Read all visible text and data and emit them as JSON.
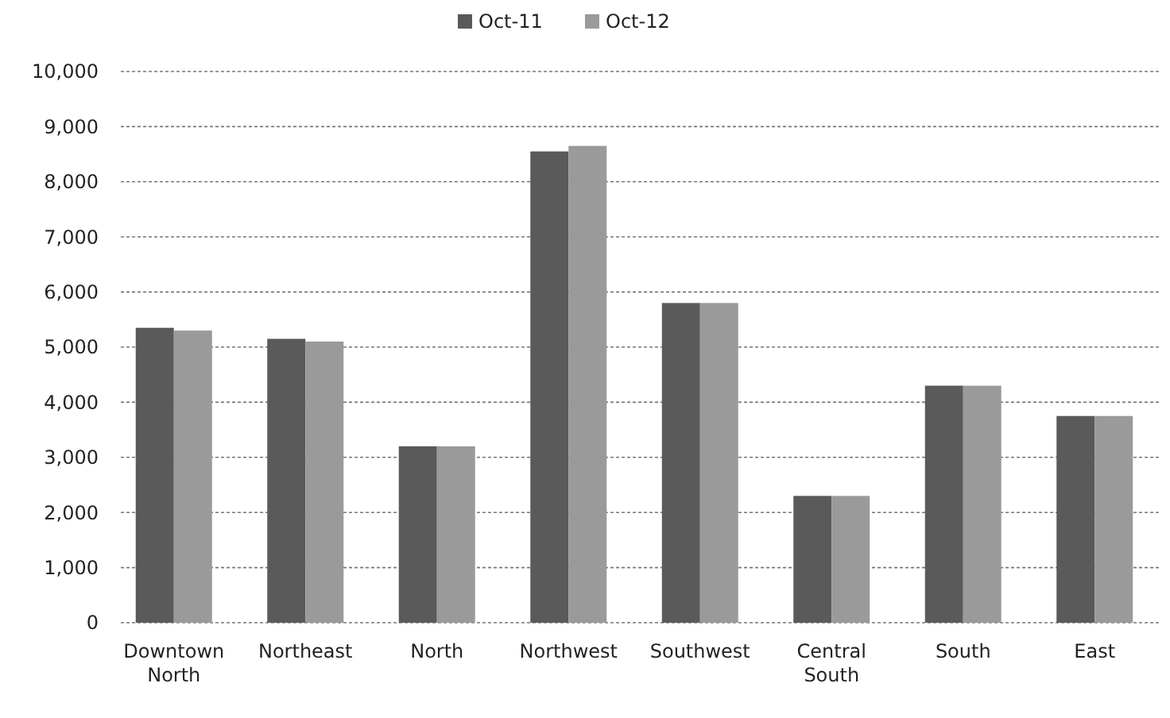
{
  "chart_data": {
    "type": "bar",
    "categories": [
      "Downtown North",
      "Northeast",
      "North",
      "Northwest",
      "Southwest",
      "Central South",
      "South",
      "East"
    ],
    "series": [
      {
        "name": "Oct-11",
        "color": "#5a5a5a",
        "values": [
          5350,
          5150,
          3200,
          8550,
          5800,
          2300,
          4300,
          3750
        ]
      },
      {
        "name": "Oct-12",
        "color": "#9a9a9a",
        "values": [
          5300,
          5100,
          3200,
          8650,
          5800,
          2300,
          4300,
          3750
        ]
      }
    ],
    "ylim": [
      0,
      10000
    ],
    "yticks": [
      {
        "value": 0,
        "label": "0"
      },
      {
        "value": 1000,
        "label": "1,000"
      },
      {
        "value": 2000,
        "label": "2,000"
      },
      {
        "value": 3000,
        "label": "3,000"
      },
      {
        "value": 4000,
        "label": "4,000"
      },
      {
        "value": 5000,
        "label": "5,000"
      },
      {
        "value": 6000,
        "label": "6,000"
      },
      {
        "value": 7000,
        "label": "7,000"
      },
      {
        "value": 8000,
        "label": "8,000"
      },
      {
        "value": 9000,
        "label": "9,000"
      },
      {
        "value": 10000,
        "label": "10,000"
      }
    ],
    "grid": "y",
    "legend": "top"
  }
}
